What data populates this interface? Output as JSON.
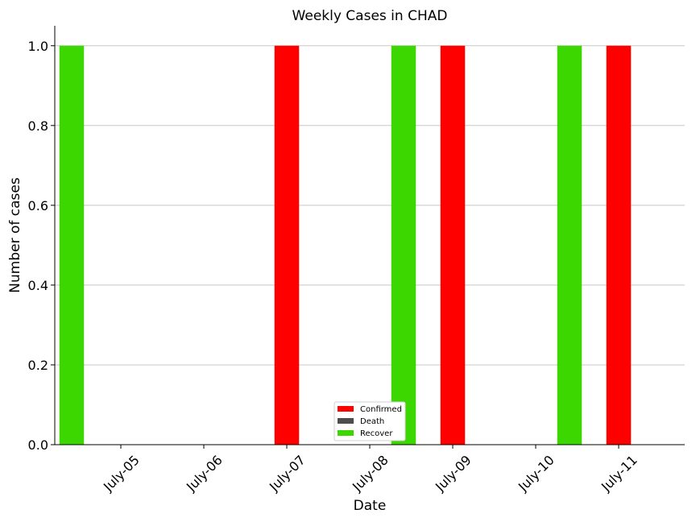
{
  "chart_data": {
    "type": "bar",
    "title": "Weekly Cases in CHAD",
    "xlabel": "Date",
    "ylabel": "Number of cases",
    "categories": [
      "July-05",
      "July-06",
      "July-07",
      "July-08",
      "July-09",
      "July-10",
      "July-11"
    ],
    "series": [
      {
        "name": "Confirmed",
        "color": "#ff0000",
        "values": [
          0,
          0,
          1,
          0,
          1,
          0,
          1
        ]
      },
      {
        "name": "Death",
        "color": "#4d4d4d",
        "values": [
          0,
          0,
          0,
          0,
          0,
          0,
          0
        ]
      },
      {
        "name": "Recover",
        "color": "#3cd600",
        "values": [
          1,
          0,
          0,
          0,
          1,
          0,
          1
        ]
      }
    ],
    "ylim": [
      0,
      1.05
    ],
    "yticks": [
      "0.0",
      "0.2",
      "0.4",
      "0.6",
      "0.8",
      "1.0"
    ],
    "grid": "horizontal",
    "legend": "bottom-center"
  }
}
